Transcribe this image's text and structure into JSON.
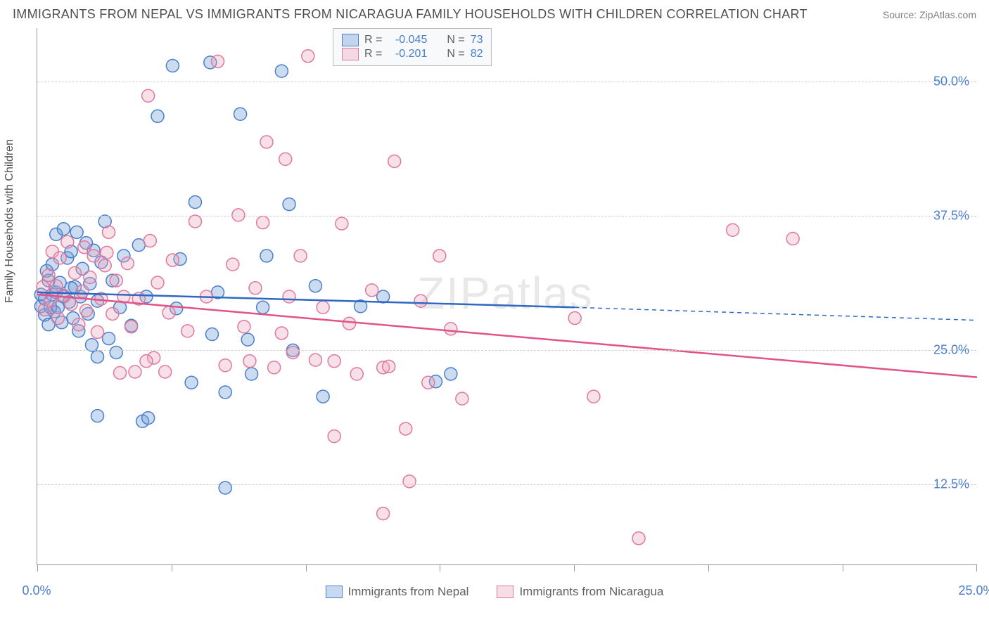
{
  "title": "IMMIGRANTS FROM NEPAL VS IMMIGRANTS FROM NICARAGUA FAMILY HOUSEHOLDS WITH CHILDREN CORRELATION CHART",
  "source": "Source: ZipAtlas.com",
  "y_axis_title": "Family Households with Children",
  "watermark": "ZIPatlas",
  "chart": {
    "type": "scatter",
    "background_color": "#ffffff",
    "grid_color": "#cfcfcf",
    "axis_color": "#999999",
    "tick_label_color": "#4a7ecb",
    "tick_fontsize": 18,
    "xlim": [
      0,
      25
    ],
    "ylim": [
      5,
      55
    ],
    "x_ticks": [
      0,
      25
    ],
    "x_tick_labels": [
      "0.0%",
      "25.0%"
    ],
    "x_minor_tick_step": 3.57,
    "y_ticks": [
      12.5,
      25.0,
      37.5,
      50.0
    ],
    "y_tick_labels": [
      "12.5%",
      "25.0%",
      "37.5%",
      "50.0%"
    ],
    "marker_radius": 9,
    "marker_stroke_width": 1.5,
    "marker_fill_opacity": 0.35,
    "series": [
      {
        "name": "Immigrants from Nepal",
        "color": "#6b9bd6",
        "stroke": "#4a7ecb",
        "trend_color": "#2e68c2",
        "trend_width": 2.5,
        "R": "-0.045",
        "N": "73",
        "trend": {
          "x1": 0,
          "y1": 30.4,
          "x2": 14.3,
          "y2": 29.0,
          "extend_x": 25,
          "extend_y": 27.8
        },
        "points": [
          [
            0.1,
            30.2
          ],
          [
            0.1,
            29.1
          ],
          [
            0.2,
            28.3
          ],
          [
            0.2,
            29.8
          ],
          [
            0.25,
            32.4
          ],
          [
            0.3,
            27.4
          ],
          [
            0.3,
            31.5
          ],
          [
            0.35,
            29.0
          ],
          [
            0.4,
            30.2
          ],
          [
            0.4,
            33.0
          ],
          [
            0.45,
            28.6
          ],
          [
            0.5,
            35.8
          ],
          [
            0.5,
            30.4
          ],
          [
            0.55,
            29.0
          ],
          [
            0.6,
            31.3
          ],
          [
            0.65,
            27.6
          ],
          [
            0.7,
            36.3
          ],
          [
            0.7,
            30.0
          ],
          [
            0.8,
            33.6
          ],
          [
            0.85,
            29.5
          ],
          [
            0.9,
            34.2
          ],
          [
            0.95,
            28.0
          ],
          [
            1.0,
            30.9
          ],
          [
            1.05,
            36.0
          ],
          [
            1.1,
            26.8
          ],
          [
            1.15,
            30.0
          ],
          [
            1.2,
            32.6
          ],
          [
            1.3,
            35.0
          ],
          [
            1.35,
            28.4
          ],
          [
            1.4,
            31.2
          ],
          [
            1.45,
            25.5
          ],
          [
            1.5,
            34.3
          ],
          [
            1.6,
            29.6
          ],
          [
            1.7,
            33.2
          ],
          [
            1.8,
            37.0
          ],
          [
            1.9,
            26.1
          ],
          [
            0.9,
            30.8
          ],
          [
            2.0,
            31.5
          ],
          [
            2.1,
            24.8
          ],
          [
            2.2,
            29.0
          ],
          [
            2.3,
            33.8
          ],
          [
            2.5,
            27.3
          ],
          [
            2.7,
            34.8
          ],
          [
            2.9,
            30.0
          ],
          [
            2.8,
            18.4
          ],
          [
            2.95,
            18.7
          ],
          [
            3.2,
            46.8
          ],
          [
            1.6,
            24.4
          ],
          [
            1.6,
            18.9
          ],
          [
            3.6,
            51.5
          ],
          [
            3.7,
            28.9
          ],
          [
            3.8,
            33.5
          ],
          [
            4.1,
            22.0
          ],
          [
            4.2,
            38.8
          ],
          [
            4.6,
            51.8
          ],
          [
            4.65,
            26.5
          ],
          [
            4.8,
            30.4
          ],
          [
            5.0,
            21.1
          ],
          [
            5.0,
            12.2
          ],
          [
            5.4,
            47.0
          ],
          [
            5.6,
            26.0
          ],
          [
            5.7,
            22.8
          ],
          [
            6.0,
            29.0
          ],
          [
            6.1,
            33.8
          ],
          [
            6.5,
            51.0
          ],
          [
            6.7,
            38.6
          ],
          [
            6.8,
            25.0
          ],
          [
            7.4,
            31.0
          ],
          [
            7.6,
            20.7
          ],
          [
            8.6,
            29.1
          ],
          [
            9.2,
            30.0
          ],
          [
            10.6,
            22.1
          ],
          [
            11.0,
            22.8
          ]
        ]
      },
      {
        "name": "Immigrants from Nicaragua",
        "color": "#e9a7ba",
        "stroke": "#e078a0",
        "trend_color": "#e25289",
        "trend_width": 2.5,
        "R": "-0.201",
        "N": "82",
        "trend": {
          "x1": 0,
          "y1": 30.2,
          "x2": 25,
          "y2": 22.5,
          "extend_x": 25,
          "extend_y": 22.5
        },
        "points": [
          [
            0.15,
            30.9
          ],
          [
            0.2,
            28.8
          ],
          [
            0.3,
            32.0
          ],
          [
            0.35,
            29.6
          ],
          [
            0.4,
            34.2
          ],
          [
            0.5,
            31.0
          ],
          [
            0.55,
            28.0
          ],
          [
            0.6,
            33.6
          ],
          [
            0.7,
            30.1
          ],
          [
            0.8,
            35.1
          ],
          [
            0.9,
            29.3
          ],
          [
            1.0,
            32.2
          ],
          [
            1.1,
            27.4
          ],
          [
            1.2,
            30.5
          ],
          [
            1.25,
            34.6
          ],
          [
            1.3,
            28.7
          ],
          [
            1.4,
            31.8
          ],
          [
            1.5,
            33.8
          ],
          [
            1.6,
            26.7
          ],
          [
            1.7,
            29.8
          ],
          [
            1.8,
            32.9
          ],
          [
            1.9,
            36.0
          ],
          [
            2.0,
            28.4
          ],
          [
            2.1,
            31.5
          ],
          [
            2.2,
            22.9
          ],
          [
            2.3,
            30.0
          ],
          [
            2.4,
            33.1
          ],
          [
            2.5,
            27.2
          ],
          [
            1.85,
            34.1
          ],
          [
            2.6,
            23.0
          ],
          [
            2.7,
            29.8
          ],
          [
            3.0,
            35.2
          ],
          [
            3.1,
            24.3
          ],
          [
            3.2,
            31.3
          ],
          [
            3.4,
            23.0
          ],
          [
            3.5,
            28.5
          ],
          [
            3.6,
            33.4
          ],
          [
            4.0,
            26.8
          ],
          [
            4.2,
            37.0
          ],
          [
            4.5,
            30.0
          ],
          [
            2.9,
            24.0
          ],
          [
            2.95,
            48.7
          ],
          [
            5.0,
            23.6
          ],
          [
            5.2,
            33.0
          ],
          [
            5.5,
            27.2
          ],
          [
            5.35,
            37.6
          ],
          [
            5.8,
            30.8
          ],
          [
            5.65,
            24.0
          ],
          [
            6.0,
            36.9
          ],
          [
            6.3,
            23.4
          ],
          [
            6.5,
            26.6
          ],
          [
            6.6,
            42.8
          ],
          [
            6.7,
            30.0
          ],
          [
            6.8,
            24.8
          ],
          [
            7.0,
            33.8
          ],
          [
            7.2,
            52.4
          ],
          [
            7.4,
            24.1
          ],
          [
            7.6,
            29.0
          ],
          [
            7.9,
            17.0
          ],
          [
            8.1,
            36.8
          ],
          [
            8.3,
            27.5
          ],
          [
            8.5,
            22.8
          ],
          [
            7.9,
            24.0
          ],
          [
            8.9,
            30.6
          ],
          [
            9.2,
            23.4
          ],
          [
            9.35,
            23.5
          ],
          [
            9.5,
            42.6
          ],
          [
            9.8,
            17.7
          ],
          [
            9.9,
            12.8
          ],
          [
            9.2,
            9.8
          ],
          [
            10.2,
            29.6
          ],
          [
            10.4,
            22.0
          ],
          [
            10.7,
            33.8
          ],
          [
            11.0,
            27.0
          ],
          [
            11.3,
            20.5
          ],
          [
            14.3,
            28.0
          ],
          [
            14.8,
            20.7
          ],
          [
            16.0,
            7.5
          ],
          [
            18.5,
            36.2
          ],
          [
            20.1,
            35.4
          ],
          [
            4.8,
            51.9
          ],
          [
            6.1,
            44.4
          ]
        ]
      }
    ],
    "top_legend": {
      "r_label": "R =",
      "n_label": "N ="
    },
    "bottom_legend_labels": [
      "Immigrants from Nepal",
      "Immigrants from Nicaragua"
    ]
  }
}
